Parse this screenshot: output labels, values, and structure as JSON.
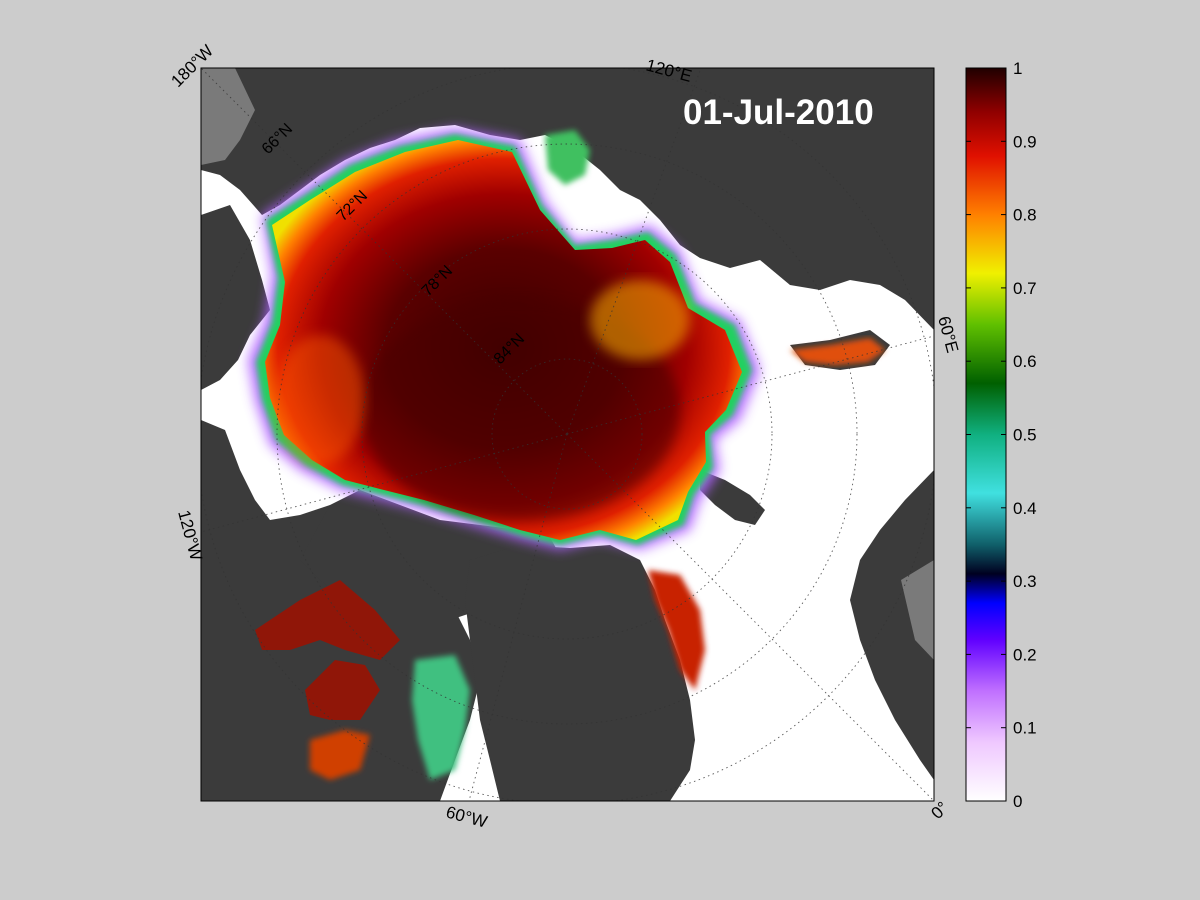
{
  "map": {
    "date": "01-Jul-2010",
    "longitude_labels": [
      "180°W",
      "120°E",
      "60°E",
      "0°",
      "60°W",
      "120°W"
    ],
    "latitude_labels": [
      "66°N",
      "72°N",
      "78°N",
      "84°N"
    ],
    "colors": {
      "background": "#cccccc",
      "land": "#3b3b3b",
      "land_light": "#7a7a7a",
      "open_water": "#ffffff",
      "ice_high": "#5a0000"
    }
  },
  "colorbar": {
    "title": "",
    "min": 0,
    "max": 1,
    "ticks": [
      "0",
      "0.1",
      "0.2",
      "0.3",
      "0.4",
      "0.5",
      "0.6",
      "0.7",
      "0.8",
      "0.9",
      "1"
    ],
    "colormap": [
      {
        "v": 0.0,
        "c": "#ffffff"
      },
      {
        "v": 0.08,
        "c": "#efc8ff"
      },
      {
        "v": 0.15,
        "c": "#c070ff"
      },
      {
        "v": 0.22,
        "c": "#6000ff"
      },
      {
        "v": 0.27,
        "c": "#0000ff"
      },
      {
        "v": 0.31,
        "c": "#000020"
      },
      {
        "v": 0.35,
        "c": "#10606a"
      },
      {
        "v": 0.42,
        "c": "#40e0e0"
      },
      {
        "v": 0.5,
        "c": "#10b080"
      },
      {
        "v": 0.57,
        "c": "#006000"
      },
      {
        "v": 0.65,
        "c": "#60c000"
      },
      {
        "v": 0.72,
        "c": "#f0f000"
      },
      {
        "v": 0.8,
        "c": "#ff8000"
      },
      {
        "v": 0.88,
        "c": "#e01000"
      },
      {
        "v": 0.94,
        "c": "#900000"
      },
      {
        "v": 1.0,
        "c": "#200000"
      }
    ]
  }
}
